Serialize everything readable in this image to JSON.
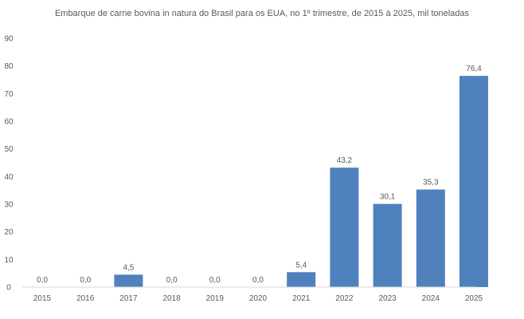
{
  "chart_data": {
    "type": "bar",
    "title": "Embarque de carne bovina in natura do Brasil para os EUA, no 1º trimestre, de 2015 à 2025, mil toneladas",
    "categories": [
      "2015",
      "2016",
      "2017",
      "2018",
      "2019",
      "2020",
      "2021",
      "2022",
      "2023",
      "2024",
      "2025"
    ],
    "values": [
      0.0,
      0.0,
      4.5,
      0.0,
      0.0,
      0.0,
      5.4,
      43.2,
      30.1,
      35.3,
      76.4
    ],
    "data_labels": [
      "0,0",
      "0,0",
      "4,5",
      "0,0",
      "0,0",
      "0,0",
      "5,4",
      "43,2",
      "30,1",
      "35,3",
      "76,4"
    ],
    "y_ticks": [
      "0",
      "10",
      "20",
      "30",
      "40",
      "50",
      "60",
      "70",
      "80",
      "90"
    ],
    "ylim": [
      0,
      90
    ],
    "xlabel": "",
    "ylabel": "",
    "grid": false,
    "legend": "none",
    "bar_color": "#4f81bd",
    "text_color": "#595959",
    "axis_color": "#d9d9d9"
  }
}
